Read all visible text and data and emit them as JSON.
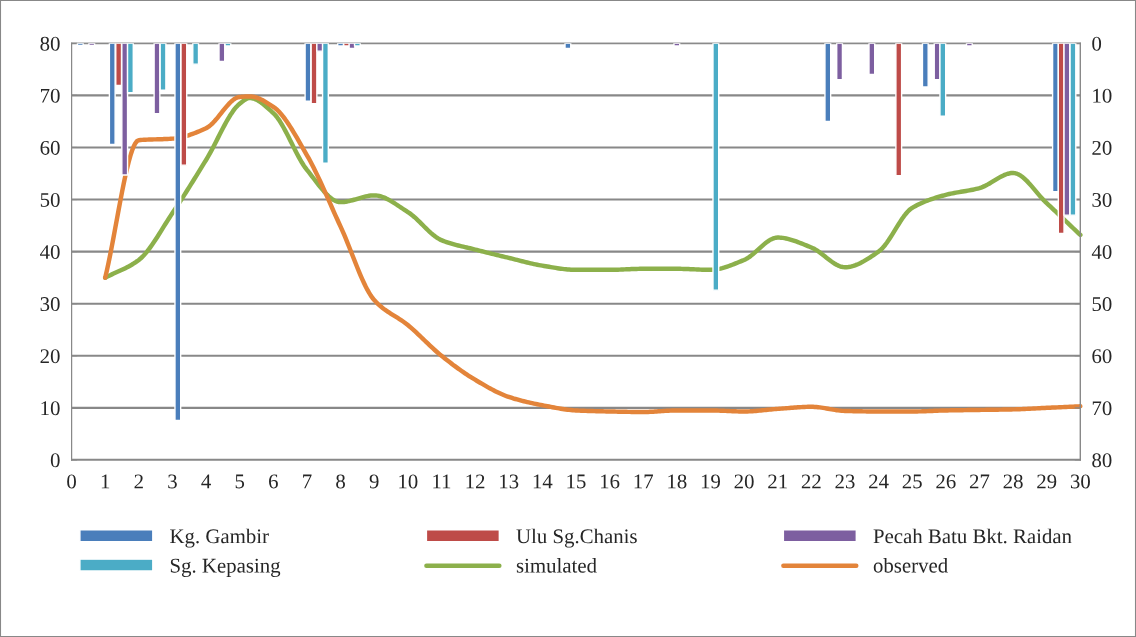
{
  "chart_data": {
    "type": "line",
    "xlim": [
      0,
      30
    ],
    "xticks": [
      0,
      1,
      2,
      3,
      4,
      5,
      6,
      7,
      8,
      9,
      10,
      11,
      12,
      13,
      14,
      15,
      16,
      17,
      18,
      19,
      20,
      21,
      22,
      23,
      24,
      25,
      26,
      27,
      28,
      29,
      30
    ],
    "ylim": [
      0,
      80
    ],
    "yticks": [
      0,
      10,
      20,
      30,
      40,
      50,
      60,
      70,
      80
    ],
    "y2lim": [
      80,
      0
    ],
    "y2ticks": [
      0,
      10,
      20,
      30,
      40,
      50,
      60,
      70,
      80
    ],
    "grid": "y",
    "legend": "bottom",
    "series": [
      {
        "name": "Kg. Gambir",
        "type": "bar",
        "axis": "y2",
        "color": "#4a7ebb",
        "x": [
          0.26,
          1.21,
          3.16,
          7.03,
          8.0,
          14.76,
          22.49,
          25.39,
          29.26
        ],
        "values": [
          0.4,
          19.4,
          72.4,
          11.1,
          0.5,
          1.0,
          15.0,
          8.4,
          28.5
        ]
      },
      {
        "name": "Ulu Sg.Chanis",
        "type": "bar",
        "axis": "y2",
        "color": "#be4b48",
        "x": [
          1.4,
          3.34,
          7.21,
          8.18,
          24.6,
          29.43
        ],
        "values": [
          8.1,
          23.4,
          11.6,
          0.5,
          25.4,
          36.5
        ]
      },
      {
        "name": "Pecah Batu Bkt. Raidan",
        "type": "bar",
        "axis": "y2",
        "color": "#7d5fa0",
        "x": [
          0.6,
          1.58,
          2.54,
          4.47,
          7.38,
          8.34,
          18.0,
          22.84,
          23.8,
          25.74,
          26.7,
          29.6
        ],
        "values": [
          0.4,
          25.3,
          13.5,
          3.5,
          1.5,
          1.0,
          0.5,
          7.0,
          6.0,
          7.0,
          0.5,
          33.0
        ]
      },
      {
        "name": "Sg. Kepasing",
        "type": "bar",
        "axis": "y2",
        "color": "#4bacc6",
        "x": [
          1.75,
          2.72,
          3.69,
          4.65,
          7.55,
          8.5,
          19.16,
          25.91,
          29.78
        ],
        "values": [
          9.5,
          9.0,
          4.0,
          0.5,
          23.0,
          0.5,
          47.4,
          14.0,
          33.0
        ]
      },
      {
        "name": "simulated",
        "color": "#8cb04b",
        "x": [
          1,
          2,
          3,
          4,
          5,
          5.3,
          6,
          7,
          8,
          9,
          10,
          11,
          12,
          13,
          14,
          15,
          16,
          17,
          18,
          19,
          20,
          21,
          22,
          23,
          24,
          25,
          26,
          27,
          28,
          29,
          30
        ],
        "values": [
          35,
          38.4,
          47.4,
          57.6,
          68.4,
          69.5,
          66.6,
          55.7,
          49.5,
          50.8,
          47.6,
          42.2,
          40.4,
          38.8,
          37.3,
          36.5,
          36.5,
          36.7,
          36.7,
          36.5,
          38.4,
          42.7,
          40.8,
          37,
          40,
          48.4,
          50.9,
          52.2,
          55.1,
          49.3,
          43.2
        ]
      },
      {
        "name": "observed",
        "color": "#e3843a",
        "x": [
          1,
          2,
          3,
          4,
          5,
          5.3,
          6,
          7,
          8,
          9,
          10,
          11,
          12,
          13,
          14,
          15,
          16,
          17,
          18,
          19,
          20,
          21,
          22,
          23,
          24,
          25,
          26,
          27,
          28,
          29,
          30
        ],
        "values": [
          35,
          61.4,
          61.7,
          63.7,
          69.7,
          69.8,
          67.8,
          58.5,
          44.8,
          30.7,
          25.9,
          20,
          15.4,
          12.1,
          10.5,
          9.5,
          9.3,
          9.2,
          9.5,
          9.5,
          9.3,
          9.8,
          10.2,
          9.4,
          9.3,
          9.3,
          9.5,
          9.6,
          9.7,
          10,
          10.3
        ]
      }
    ]
  }
}
